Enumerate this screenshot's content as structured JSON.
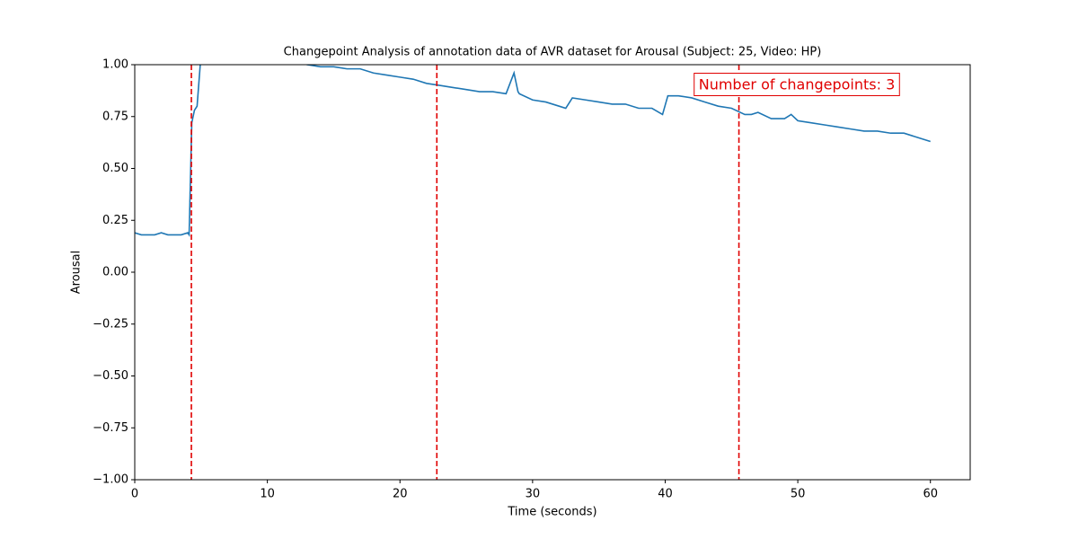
{
  "chart_data": {
    "type": "line",
    "title": "Changepoint Analysis of annotation data of AVR dataset for Arousal (Subject: 25, Video: HP)",
    "xlabel": "Time (seconds)",
    "ylabel": "Arousal",
    "x": [
      0,
      0.5,
      1,
      1.5,
      2,
      2.5,
      3,
      3.5,
      4,
      4.1,
      4.3,
      4.5,
      4.7,
      5,
      6,
      7,
      8,
      9,
      10,
      11,
      12,
      13,
      14,
      15,
      16,
      17,
      18,
      19,
      20,
      21,
      22,
      23,
      24,
      25,
      26,
      27,
      28,
      28.6,
      28.9,
      29,
      30,
      31,
      32,
      32.5,
      33,
      34,
      35,
      36,
      37,
      38,
      39,
      39.8,
      40.2,
      41,
      42,
      43,
      44,
      45,
      46,
      46.5,
      47,
      48,
      49,
      49.5,
      50,
      51,
      52,
      53,
      54,
      55,
      56,
      57,
      58,
      59,
      60
    ],
    "series": [
      {
        "color": "#1f77b4",
        "values": [
          0.19,
          0.18,
          0.18,
          0.18,
          0.19,
          0.18,
          0.18,
          0.18,
          0.19,
          0.18,
          0.72,
          0.78,
          0.8,
          1.05,
          1.06,
          1.06,
          1.05,
          1.05,
          1.04,
          1.03,
          1.02,
          1.0,
          0.99,
          0.99,
          0.98,
          0.98,
          0.96,
          0.95,
          0.94,
          0.93,
          0.91,
          0.9,
          0.89,
          0.88,
          0.87,
          0.87,
          0.86,
          0.96,
          0.87,
          0.86,
          0.83,
          0.82,
          0.8,
          0.79,
          0.84,
          0.83,
          0.82,
          0.81,
          0.81,
          0.79,
          0.79,
          0.76,
          0.85,
          0.85,
          0.84,
          0.82,
          0.8,
          0.79,
          0.76,
          0.76,
          0.77,
          0.74,
          0.74,
          0.76,
          0.73,
          0.72,
          0.71,
          0.7,
          0.69,
          0.68,
          0.68,
          0.67,
          0.67,
          0.65,
          0.63
        ]
      }
    ],
    "changepoints": [
      4.27,
      22.78,
      45.56
    ],
    "changepoint_color": "#e00000",
    "annotation": "Number of changepoints: 3",
    "xlim": [
      0,
      63
    ],
    "xticks": [
      0,
      10,
      20,
      30,
      40,
      50,
      60
    ],
    "ylim": [
      -1,
      1
    ],
    "yticks": [
      {
        "value": -1,
        "label": "−1.00"
      },
      {
        "value": -0.75,
        "label": "−0.75"
      },
      {
        "value": -0.5,
        "label": "−0.50"
      },
      {
        "value": -0.25,
        "label": "−0.25"
      },
      {
        "value": 0,
        "label": "0.00"
      },
      {
        "value": 0.25,
        "label": "0.25"
      },
      {
        "value": 0.5,
        "label": "0.50"
      },
      {
        "value": 0.75,
        "label": "0.75"
      },
      {
        "value": 1,
        "label": "1.00"
      }
    ],
    "grid": false
  }
}
